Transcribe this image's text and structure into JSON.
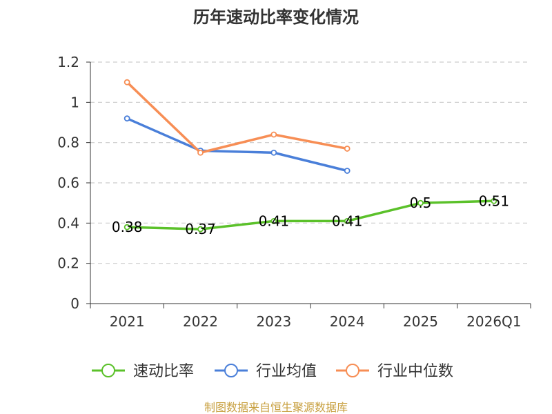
{
  "chart_data": {
    "type": "line",
    "title": "历年速动比率变化情况",
    "categories": [
      "2021",
      "2022",
      "2023",
      "2024",
      "2025",
      "2026Q1"
    ],
    "ylim": [
      0,
      1.2
    ],
    "yticks": [
      "0",
      "0.2",
      "0.4",
      "0.6",
      "0.8",
      "1",
      "1.2"
    ],
    "grid": true,
    "legend_position": "bottom",
    "series": [
      {
        "name": "速动比率",
        "color": "#5bc12a",
        "values": [
          0.38,
          0.37,
          0.41,
          0.41,
          0.5,
          0.51
        ],
        "labels": [
          "0.38",
          "0.37",
          "0.41",
          "0.41",
          "0.5",
          "0.51"
        ]
      },
      {
        "name": "行业均值",
        "color": "#4a7fd9",
        "values": [
          0.92,
          0.76,
          0.75,
          0.66,
          null,
          null
        ]
      },
      {
        "name": "行业中位数",
        "color": "#f78e55",
        "values": [
          1.1,
          0.75,
          0.84,
          0.77,
          null,
          null
        ]
      }
    ]
  },
  "source": "制图数据来自恒生聚源数据库"
}
